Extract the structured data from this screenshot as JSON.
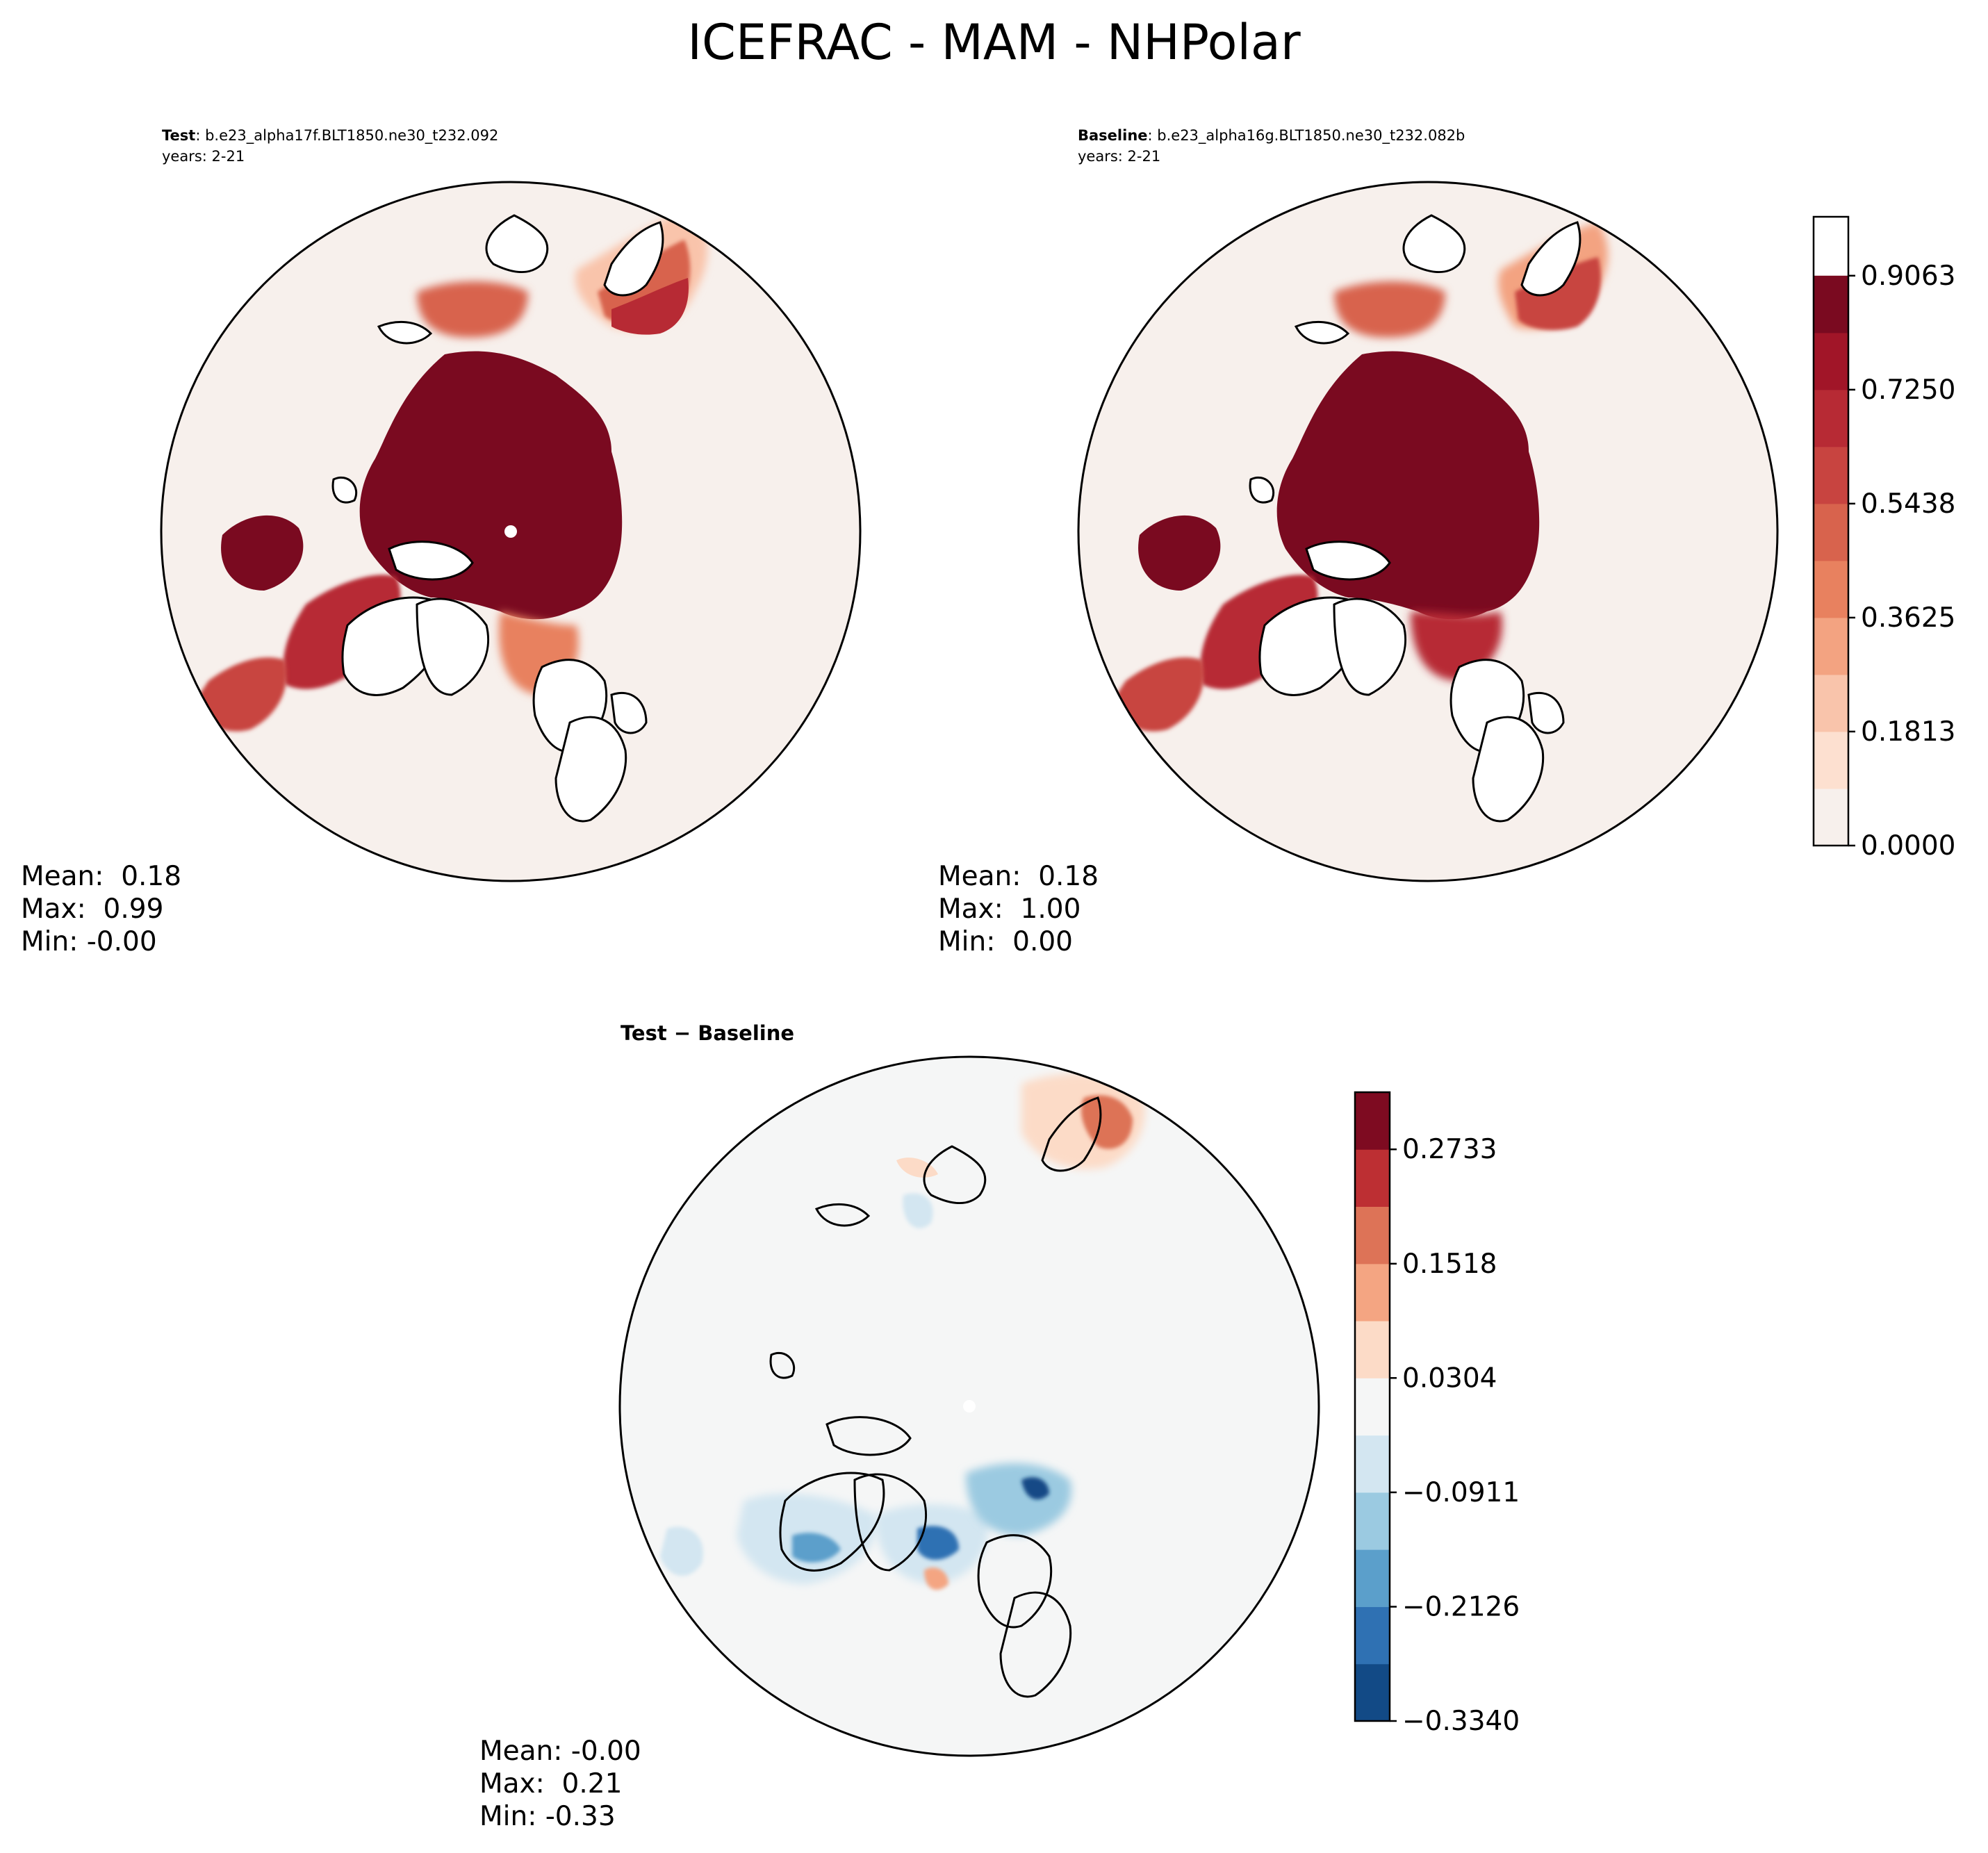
{
  "title": "ICEFRAC - MAM - NHPolar",
  "panels": {
    "test": {
      "label": "Test",
      "case": ": b.e23_alpha17f.BLT1850.ne30_t232.092",
      "years": "years: 2-21",
      "stats": {
        "mean": "Mean:  0.18",
        "max": "Max:  0.99",
        "min": "Min: -0.00"
      }
    },
    "baseline": {
      "label": "Baseline",
      "case": ": b.e23_alpha16g.BLT1850.ne30_t232.082b",
      "years": "years: 2-21",
      "stats": {
        "mean": "Mean:  0.18",
        "max": "Max:  1.00",
        "min": "Min:  0.00"
      }
    },
    "diff": {
      "title": "Test − Baseline",
      "stats": {
        "mean": "Mean: -0.00",
        "max": "Max:  0.21",
        "min": "Min: -0.33"
      }
    }
  },
  "chart_data": [
    {
      "type": "heatmap",
      "subtitle": "Test",
      "projection": "North polar stereographic",
      "colormap": "RdBu_r (upper half)",
      "colorbar_levels": [
        0.0,
        0.0906,
        0.1813,
        0.2719,
        0.3625,
        0.4531,
        0.5438,
        0.6344,
        0.725,
        0.8156,
        0.9063,
        1.0
      ],
      "colorbar_tick_labels": [
        "0.0000",
        "0.1813",
        "0.3625",
        "0.5438",
        "0.7250",
        "0.9063"
      ],
      "colors": [
        "#f7f0ec",
        "#fde0d0",
        "#f9c4ab",
        "#f3a381",
        "#e8815f",
        "#d8634d",
        "#c84440",
        "#b72a34",
        "#a11528",
        "#7a0a20"
      ],
      "mean": 0.18,
      "max": 0.99,
      "min": -0.0
    },
    {
      "type": "heatmap",
      "subtitle": "Baseline",
      "projection": "North polar stereographic",
      "colormap": "RdBu_r (upper half)",
      "colorbar_tick_labels": [
        "0.0000",
        "0.1813",
        "0.3625",
        "0.5438",
        "0.7250",
        "0.9063"
      ],
      "mean": 0.18,
      "max": 1.0,
      "min": 0.0
    },
    {
      "type": "heatmap",
      "subtitle": "Test − Baseline",
      "projection": "North polar stereographic",
      "colormap": "RdBu_r",
      "colorbar_levels": [
        -0.334,
        -0.2733,
        -0.2126,
        -0.1518,
        -0.0911,
        -0.0304,
        0.0304,
        0.0911,
        0.1518,
        0.2126,
        0.2733,
        0.334
      ],
      "colorbar_tick_labels": [
        "−0.3340",
        "−0.2126",
        "−0.0911",
        "0.0304",
        "0.1518",
        "0.2733"
      ],
      "colors": [
        "#124a86",
        "#2f71b3",
        "#5b9fcb",
        "#9bcae1",
        "#d3e6f1",
        "#f5f6f6",
        "#fcdbc7",
        "#f4a582",
        "#dd7357",
        "#bd2f33",
        "#7e0b21"
      ],
      "mean": -0.0,
      "max": 0.21,
      "min": -0.33
    }
  ]
}
